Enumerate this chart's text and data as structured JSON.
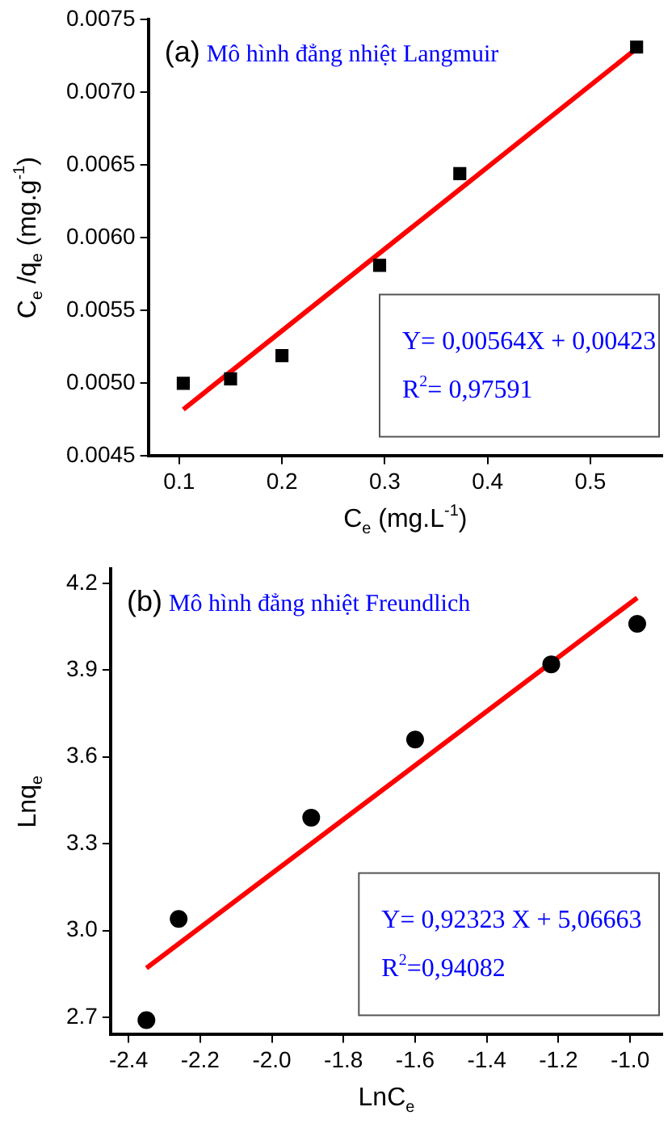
{
  "chart_data": [
    {
      "type": "scatter",
      "xlabel": "C$_{e}$ (mg.L$^{-1}$)",
      "ylabel": "C$_{e}$ /q$_{e}$ (mg.g$^{-1}$)",
      "annotations": [
        "(a)",
        "Mô hình đẳng nhiệt Langmuir",
        "Y= 0,00564X + 0,00423",
        "R$^{2}$= 0,97591"
      ],
      "xlim": [
        0.07,
        0.57
      ],
      "xticks": [
        0.1,
        0.2,
        0.3,
        0.4,
        0.5
      ],
      "ylim": [
        0.0045,
        0.0075
      ],
      "yticks": [
        {
          "value": 0.0045,
          "label": "0.0045"
        },
        {
          "value": 0.005,
          "label": "0.0050"
        },
        {
          "value": 0.0055,
          "label": "0.0055"
        },
        {
          "value": 0.006,
          "label": "0.0060"
        },
        {
          "value": 0.0065,
          "label": "0.0065"
        },
        {
          "value": 0.007,
          "label": "0.0070"
        },
        {
          "value": 0.0075,
          "label": "0.0075"
        }
      ],
      "series": [
        {
          "marker": "square",
          "color": "#000000",
          "x": [
            0.104,
            0.15,
            0.2,
            0.295,
            0.373,
            0.545
          ],
          "values": [
            0.005,
            0.00503,
            0.00519,
            0.00581,
            0.00644,
            0.00731
          ]
        },
        {
          "type": "line",
          "color": "#ff0000",
          "x": [
            0.104,
            0.545
          ],
          "values": [
            0.00482,
            0.0073
          ]
        }
      ]
    },
    {
      "type": "scatter",
      "xlabel": "LnC$_{e}$",
      "ylabel": "Lnq$_{e}$",
      "annotations": [
        "(b)",
        "Mô hình đẳng nhiệt Freundlich",
        "Y= 0,92323 X + 5,06663",
        "R$^{2}$=0,94082"
      ],
      "xlim": [
        -2.45,
        -0.91
      ],
      "xticks": [
        -2.4,
        -2.2,
        {
          "value": -2,
          "label": "-2.0"
        },
        -1.8,
        -1.6,
        -1.4,
        -1.2,
        {
          "value": -1,
          "label": "-1.0"
        }
      ],
      "ylim": [
        2.64,
        4.25
      ],
      "yticks": [
        2.7,
        {
          "value": 3,
          "label": "3.0"
        },
        3.3,
        3.6,
        3.9,
        4.2
      ],
      "series": [
        {
          "marker": "circle",
          "color": "#000000",
          "x": [
            -2.35,
            -2.26,
            -1.89,
            -1.6,
            -1.22,
            -0.98
          ],
          "values": [
            2.69,
            3.04,
            3.39,
            3.66,
            3.92,
            4.06
          ]
        },
        {
          "type": "line",
          "color": "#ff0000",
          "x": [
            -2.35,
            -0.98
          ],
          "values": [
            2.87,
            4.15
          ]
        }
      ]
    }
  ]
}
